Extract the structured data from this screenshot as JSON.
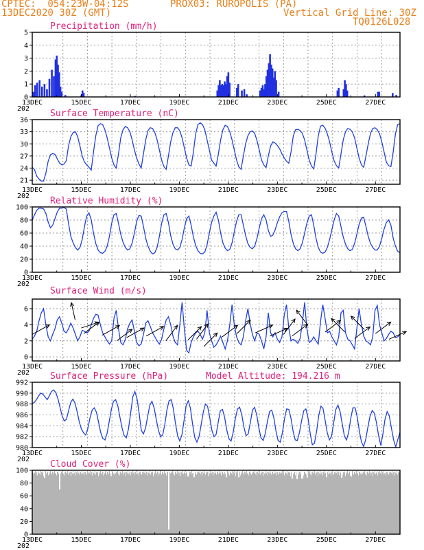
{
  "header": {
    "line1_left": "CPTEC:  054:23W-04:12S",
    "line1_right": "PROX03: RUROPOLIS (PA)",
    "line2_left": "13DEC2020 30Z (GMT)",
    "line2_right": "Vertical Grid Line: 30Z",
    "line3_right": "TQ0126L028"
  },
  "colors": {
    "header": "#e8801a",
    "title": "#e0207a",
    "line": "#2040e0",
    "bar": "#2030e0",
    "cloud": "#b4b4b4",
    "arrow": "#000000"
  },
  "x_tick_labels": [
    "13DEC",
    "15DEC",
    "17DEC",
    "19DEC",
    "21DEC",
    "23DEC",
    "25DEC",
    "27DEC"
  ],
  "year_stub": "202",
  "chart_data": [
    {
      "id": "precip",
      "type": "bar",
      "title": "Precipitation (mm/h)",
      "ylim": [
        0,
        5
      ],
      "yticks": [
        "0",
        "1",
        "2",
        "3",
        "4",
        "5"
      ],
      "x_unit": "days since 13DEC 00Z",
      "series": [
        {
          "x": 0.05,
          "y": 0.4
        },
        {
          "x": 0.12,
          "y": 0.9
        },
        {
          "x": 0.2,
          "y": 1.1
        },
        {
          "x": 0.3,
          "y": 1.3
        },
        {
          "x": 0.4,
          "y": 0.8
        },
        {
          "x": 0.5,
          "y": 1.0
        },
        {
          "x": 0.6,
          "y": 0.6
        },
        {
          "x": 0.7,
          "y": 1.4
        },
        {
          "x": 0.8,
          "y": 2.1
        },
        {
          "x": 0.88,
          "y": 1.6
        },
        {
          "x": 0.95,
          "y": 2.9
        },
        {
          "x": 1.0,
          "y": 3.2
        },
        {
          "x": 1.05,
          "y": 2.5
        },
        {
          "x": 1.1,
          "y": 1.9
        },
        {
          "x": 1.15,
          "y": 0.8
        },
        {
          "x": 1.2,
          "y": 0.4
        },
        {
          "x": 1.35,
          "y": 0.15
        },
        {
          "x": 2.0,
          "y": 0.12
        },
        {
          "x": 2.05,
          "y": 0.5
        },
        {
          "x": 2.1,
          "y": 0.3
        },
        {
          "x": 4.2,
          "y": 0.08
        },
        {
          "x": 7.55,
          "y": 0.5
        },
        {
          "x": 7.6,
          "y": 0.9
        },
        {
          "x": 7.65,
          "y": 1.3
        },
        {
          "x": 7.7,
          "y": 0.9
        },
        {
          "x": 7.75,
          "y": 1.0
        },
        {
          "x": 7.8,
          "y": 0.9
        },
        {
          "x": 7.85,
          "y": 1.2
        },
        {
          "x": 7.9,
          "y": 1.0
        },
        {
          "x": 7.95,
          "y": 1.6
        },
        {
          "x": 8.0,
          "y": 1.9
        },
        {
          "x": 8.05,
          "y": 1.1
        },
        {
          "x": 8.35,
          "y": 0.7
        },
        {
          "x": 8.4,
          "y": 1.0
        },
        {
          "x": 8.55,
          "y": 0.5
        },
        {
          "x": 8.65,
          "y": 0.6
        },
        {
          "x": 8.75,
          "y": 0.2
        },
        {
          "x": 9.3,
          "y": 0.5
        },
        {
          "x": 9.35,
          "y": 0.7
        },
        {
          "x": 9.4,
          "y": 0.9
        },
        {
          "x": 9.45,
          "y": 0.6
        },
        {
          "x": 9.5,
          "y": 1.0
        },
        {
          "x": 9.55,
          "y": 1.6
        },
        {
          "x": 9.6,
          "y": 2.1
        },
        {
          "x": 9.65,
          "y": 2.6
        },
        {
          "x": 9.7,
          "y": 3.3
        },
        {
          "x": 9.75,
          "y": 2.5
        },
        {
          "x": 9.8,
          "y": 2.2
        },
        {
          "x": 9.85,
          "y": 1.5
        },
        {
          "x": 9.9,
          "y": 2.0
        },
        {
          "x": 9.95,
          "y": 1.3
        },
        {
          "x": 10.05,
          "y": 0.4
        },
        {
          "x": 12.45,
          "y": 0.5
        },
        {
          "x": 12.5,
          "y": 0.7
        },
        {
          "x": 12.7,
          "y": 0.6
        },
        {
          "x": 12.75,
          "y": 1.3
        },
        {
          "x": 12.8,
          "y": 1.0
        },
        {
          "x": 12.85,
          "y": 0.5
        },
        {
          "x": 13.55,
          "y": 0.12
        },
        {
          "x": 14.1,
          "y": 0.4
        },
        {
          "x": 14.15,
          "y": 0.4
        },
        {
          "x": 14.7,
          "y": 0.3
        },
        {
          "x": 14.85,
          "y": 0.15
        }
      ]
    },
    {
      "id": "temp",
      "type": "line",
      "title": "Surface Temperature (nC)",
      "ylim": [
        20,
        36
      ],
      "yticks": [
        "21",
        "24",
        "27",
        "30",
        "33",
        "36"
      ],
      "x_unit": "days since 13DEC 00Z",
      "values": [
        24.2,
        23.6,
        22.0,
        21.3,
        20.8,
        20.8,
        22.8,
        25.7,
        27.3,
        27.6,
        27.4,
        26.3,
        25.3,
        24.8,
        25.0,
        25.8,
        29.5,
        31.8,
        32.8,
        33.0,
        31.8,
        29.5,
        27.0,
        25.5,
        24.8,
        24.2,
        23.5,
        28.0,
        32.0,
        34.5,
        35.0,
        34.8,
        33.5,
        31.5,
        29.0,
        26.5,
        24.8,
        24.0,
        27.5,
        31.5,
        33.5,
        34.3,
        34.0,
        33.0,
        31.0,
        28.5,
        26.5,
        25.0,
        24.0,
        27.5,
        31.0,
        33.3,
        34.0,
        33.8,
        32.8,
        31.0,
        28.5,
        26.0,
        24.4,
        23.7,
        27.0,
        30.5,
        32.8,
        34.0,
        34.0,
        33.2,
        31.5,
        29.0,
        26.5,
        24.8,
        24.5,
        28.0,
        32.5,
        34.8,
        35.2,
        34.8,
        33.5,
        31.0,
        28.5,
        26.0,
        25.2,
        24.5,
        27.5,
        31.0,
        33.5,
        34.6,
        34.3,
        33.0,
        31.0,
        28.5,
        26.0,
        24.3,
        23.7,
        27.0,
        30.0,
        32.0,
        33.0,
        33.2,
        32.6,
        30.8,
        28.5,
        26.0,
        24.8,
        24.1,
        27.0,
        29.5,
        30.5,
        30.2,
        29.6,
        28.8,
        27.5,
        26.5,
        25.7,
        25.2,
        28.0,
        32.0,
        33.5,
        33.6,
        33.3,
        32.6,
        31.0,
        28.5,
        26.0,
        24.5,
        23.8,
        27.5,
        32.0,
        34.4,
        34.6,
        33.9,
        32.5,
        30.5,
        28.0,
        25.8,
        24.6,
        24.0,
        27.5,
        31.0,
        33.0,
        33.8,
        33.6,
        33.0,
        31.5,
        29.0,
        26.5,
        24.8,
        24.2,
        27.0,
        30.0,
        32.6,
        33.8,
        34.0,
        33.5,
        32.5,
        30.5,
        28.0,
        25.5,
        24.6,
        24.4,
        28.0,
        32.5,
        34.8,
        35.0
      ]
    },
    {
      "id": "rh",
      "type": "line",
      "title": "Relative Humidity (%)",
      "ylim": [
        0,
        100
      ],
      "yticks": [
        "0",
        "20",
        "40",
        "60",
        "80",
        "100"
      ],
      "x_unit": "days since 13DEC 00Z",
      "values": [
        80,
        88,
        95,
        98,
        98,
        97,
        90,
        77,
        68,
        72,
        82,
        92,
        98,
        98,
        99,
        97,
        75,
        55,
        45,
        38,
        34,
        38,
        50,
        70,
        86,
        91,
        80,
        60,
        44,
        34,
        30,
        29,
        32,
        40,
        55,
        75,
        88,
        90,
        75,
        58,
        46,
        38,
        34,
        36,
        45,
        60,
        78,
        87,
        86,
        70,
        52,
        40,
        32,
        28,
        30,
        38,
        55,
        75,
        88,
        90,
        76,
        56,
        43,
        36,
        34,
        38,
        50,
        68,
        82,
        86,
        72,
        54,
        41,
        33,
        29,
        28,
        31,
        42,
        60,
        76,
        86,
        92,
        80,
        60,
        45,
        37,
        33,
        35,
        45,
        62,
        78,
        88,
        88,
        72,
        56,
        44,
        38,
        36,
        40,
        52,
        68,
        82,
        88,
        80,
        64,
        55,
        57,
        65,
        76,
        85,
        91,
        93,
        93,
        78,
        58,
        44,
        36,
        33,
        36,
        45,
        60,
        75,
        86,
        88,
        72,
        52,
        38,
        31,
        29,
        31,
        38,
        50,
        65,
        80,
        90,
        86,
        70,
        54,
        43,
        36,
        33,
        35,
        44,
        58,
        73,
        83,
        84,
        70,
        55,
        44,
        38,
        34,
        34,
        40,
        52,
        66,
        76,
        80,
        72,
        52,
        40,
        32,
        30
      ]
    },
    {
      "id": "wind",
      "type": "line",
      "title": "Surface Wind (m/s)",
      "ylim": [
        -0.5,
        7.2
      ],
      "yticks": [
        "0",
        "2",
        "4",
        "6"
      ],
      "x_unit": "days since 13DEC 00Z",
      "values": [
        2.2,
        2.6,
        3.2,
        4.5,
        5.5,
        6.0,
        4.0,
        2.5,
        2.0,
        2.8,
        3.5,
        4.6,
        5.0,
        4.2,
        3.2,
        3.0,
        3.5,
        4.2,
        3.6,
        2.8,
        2.0,
        2.5,
        3.3,
        3.2,
        3.0,
        3.2,
        4.0,
        4.8,
        5.3,
        5.2,
        4.0,
        3.0,
        2.5,
        2.0,
        1.6,
        2.0,
        4.8,
        5.8,
        3.5,
        1.8,
        1.5,
        2.2,
        3.5,
        4.2,
        4.6,
        3.2,
        1.8,
        1.4,
        1.6,
        2.8,
        4.2,
        4.5,
        3.8,
        3.0,
        2.5,
        2.0,
        1.6,
        2.2,
        3.5,
        4.6,
        5.0,
        4.0,
        2.6,
        1.8,
        1.5,
        4.0,
        6.8,
        3.5,
        0.8,
        0.5,
        1.8,
        2.5,
        3.0,
        3.2,
        2.8,
        2.2,
        3.0,
        5.8,
        3.0,
        2.0,
        1.2,
        1.5,
        2.0,
        2.6,
        1.8,
        1.0,
        2.0,
        4.0,
        6.5,
        4.0,
        2.5,
        1.8,
        1.5,
        2.5,
        4.5,
        6.0,
        4.2,
        2.8,
        2.0,
        3.0,
        2.8,
        2.0,
        1.0,
        2.5,
        5.5,
        3.0,
        2.5,
        3.0,
        2.2,
        1.8,
        2.5,
        5.2,
        6.5,
        3.6,
        2.0,
        2.2,
        2.0,
        1.7,
        2.3,
        4.2,
        6.8,
        3.5,
        1.8,
        2.0,
        2.5,
        2.0,
        1.6,
        4.4,
        6.5,
        4.8,
        3.0,
        3.2,
        2.5,
        2.0,
        1.5,
        2.5,
        5.5,
        5.8,
        3.0,
        2.2,
        2.0,
        1.5,
        1.0,
        3.5,
        6.0,
        4.0,
        2.6,
        2.0,
        1.8,
        1.5,
        2.5,
        5.8,
        6.4,
        4.0,
        3.0,
        2.0,
        2.3,
        2.8,
        3.2,
        3.0,
        2.4,
        2.5,
        2.8
      ],
      "arrows": [
        {
          "x": 0.0,
          "speed": 2.8,
          "dx": 0.9,
          "dy": 0.5
        },
        {
          "x": 1.75,
          "speed": 4.6,
          "dx": -0.2,
          "dy": 0.9
        },
        {
          "x": 2.0,
          "speed": 3.6,
          "dx": 0.9,
          "dy": 0.3
        },
        {
          "x": 2.1,
          "speed": 2.9,
          "dx": 0.8,
          "dy": 0.6
        },
        {
          "x": 2.85,
          "speed": 2.7,
          "dx": 0.9,
          "dy": 0.5
        },
        {
          "x": 3.45,
          "speed": 2.0,
          "dx": 0.8,
          "dy": 0.6
        },
        {
          "x": 3.85,
          "speed": 2.4,
          "dx": 0.9,
          "dy": 0.5
        },
        {
          "x": 4.65,
          "speed": 2.6,
          "dx": 0.9,
          "dy": 0.5
        },
        {
          "x": 5.45,
          "speed": 2.0,
          "dx": 0.6,
          "dy": 0.8
        },
        {
          "x": 6.35,
          "speed": 2.1,
          "dx": 0.7,
          "dy": 0.7
        },
        {
          "x": 6.7,
          "speed": 2.2,
          "dx": 0.6,
          "dy": 0.8
        },
        {
          "x": 7.0,
          "speed": 1.3,
          "dx": 0.7,
          "dy": 0.7
        },
        {
          "x": 7.75,
          "speed": 2.5,
          "dx": 0.8,
          "dy": 0.6
        },
        {
          "x": 8.35,
          "speed": 2.9,
          "dx": 0.7,
          "dy": 0.7
        },
        {
          "x": 9.1,
          "speed": 3.0,
          "dx": 0.9,
          "dy": 0.4
        },
        {
          "x": 9.7,
          "speed": 2.6,
          "dx": 0.9,
          "dy": 0.4
        },
        {
          "x": 10.25,
          "speed": 2.8,
          "dx": 0.6,
          "dy": 0.8
        },
        {
          "x": 10.6,
          "speed": 2.6,
          "dx": 0.8,
          "dy": 0.6
        },
        {
          "x": 11.25,
          "speed": 3.9,
          "dx": -0.6,
          "dy": 0.8
        },
        {
          "x": 11.95,
          "speed": 3.1,
          "dx": 0.8,
          "dy": 0.6
        },
        {
          "x": 12.75,
          "speed": 3.1,
          "dx": -0.7,
          "dy": 0.7
        },
        {
          "x": 13.15,
          "speed": 2.3,
          "dx": 0.8,
          "dy": 0.6
        },
        {
          "x": 13.55,
          "speed": 3.4,
          "dx": -0.7,
          "dy": 0.7
        },
        {
          "x": 14.0,
          "speed": 2.9,
          "dx": 0.8,
          "dy": 0.6
        },
        {
          "x": 14.55,
          "speed": 2.2,
          "dx": 0.9,
          "dy": 0.4
        }
      ]
    },
    {
      "id": "pres",
      "type": "line",
      "title": "Surface Pressure (hPa)",
      "annotation": "Model Altitude: 194.216 m",
      "ylim": [
        980,
        992
      ],
      "yticks": [
        "980",
        "982",
        "984",
        "986",
        "988",
        "990",
        "992"
      ],
      "x_unit": "days since 13DEC 00Z",
      "values": [
        988.1,
        988.3,
        988.8,
        989.5,
        990.0,
        989.8,
        989.3,
        988.8,
        989.5,
        990.3,
        990.6,
        990.1,
        989.0,
        987.4,
        985.8,
        984.9,
        985.2,
        986.8,
        988.3,
        988.9,
        988.2,
        986.6,
        984.7,
        983.4,
        982.7,
        982.3,
        983.5,
        985.4,
        986.9,
        987.3,
        986.5,
        984.7,
        982.8,
        981.7,
        981.4,
        982.6,
        984.8,
        987.0,
        988.5,
        988.8,
        987.7,
        985.6,
        983.6,
        982.2,
        981.8,
        983.4,
        986.2,
        989.3,
        990.3,
        989.0,
        986.3,
        983.2,
        982.5,
        983.6,
        985.8,
        987.8,
        988.5,
        987.3,
        985.2,
        983.2,
        982.0,
        982.3,
        984.2,
        986.9,
        988.6,
        988.8,
        987.1,
        984.4,
        982.2,
        981.2,
        982.3,
        985.0,
        987.8,
        988.6,
        987.2,
        984.3,
        981.9,
        981.0,
        982.0,
        984.2,
        986.5,
        988.0,
        987.6,
        985.5,
        983.2,
        982.0,
        982.4,
        984.7,
        986.8,
        987.0,
        985.5,
        983.2,
        981.6,
        981.2,
        982.8,
        985.3,
        987.1,
        987.4,
        986.0,
        983.8,
        982.2,
        982.5,
        984.6,
        986.9,
        987.4,
        986.0,
        983.6,
        981.8,
        981.3,
        982.6,
        984.8,
        986.6,
        986.9,
        985.5,
        983.0,
        981.3,
        981.0,
        982.7,
        985.3,
        987.1,
        987.0,
        985.4,
        983.0,
        981.4,
        981.3,
        982.8,
        985.0,
        986.8,
        987.1,
        985.4,
        982.6,
        980.5,
        980.8,
        983.0,
        985.9,
        987.6,
        987.2,
        985.0,
        982.7,
        981.4,
        982.1,
        984.6,
        987.0,
        987.8,
        986.6,
        984.3,
        982.1,
        981.4,
        982.8,
        985.4,
        987.3,
        987.3,
        985.6,
        983.0,
        981.0,
        980.2,
        981.5,
        983.8,
        985.8,
        986.8,
        986.3,
        984.6,
        982.2,
        980.4,
        982.5,
        985.2,
        986.6,
        985.8,
        983.6,
        981.4,
        980.1,
        981.5,
        982.8
      ]
    },
    {
      "id": "cloud",
      "type": "bar",
      "title": "Cloud Cover (%)",
      "ylim": [
        0,
        100
      ],
      "yticks": [
        "0",
        "20",
        "40",
        "60",
        "80",
        "100"
      ],
      "x_unit": "days since 13DEC 00Z",
      "pattern_base": [
        97,
        95,
        98,
        96,
        99,
        94,
        97,
        92,
        98,
        96,
        95,
        99,
        93,
        97,
        96,
        98,
        91,
        97,
        95,
        99,
        94,
        96,
        98,
        92,
        97,
        95,
        99,
        96,
        93,
        98,
        97,
        94,
        99,
        95,
        96,
        92,
        98,
        97,
        95,
        93
      ],
      "dips": [
        {
          "x": 0.5,
          "y": 88
        },
        {
          "x": 1.1,
          "y": 70
        },
        {
          "x": 3.2,
          "y": 91
        },
        {
          "x": 5.55,
          "y": 7
        },
        {
          "x": 6.35,
          "y": 90
        },
        {
          "x": 6.6,
          "y": 89
        },
        {
          "x": 7.9,
          "y": 89
        },
        {
          "x": 8.4,
          "y": 89
        },
        {
          "x": 10.6,
          "y": 87
        },
        {
          "x": 10.8,
          "y": 86
        },
        {
          "x": 11.0,
          "y": 87
        },
        {
          "x": 11.2,
          "y": 88
        },
        {
          "x": 12.0,
          "y": 89
        },
        {
          "x": 12.6,
          "y": 88
        },
        {
          "x": 13.0,
          "y": 90
        }
      ]
    }
  ]
}
